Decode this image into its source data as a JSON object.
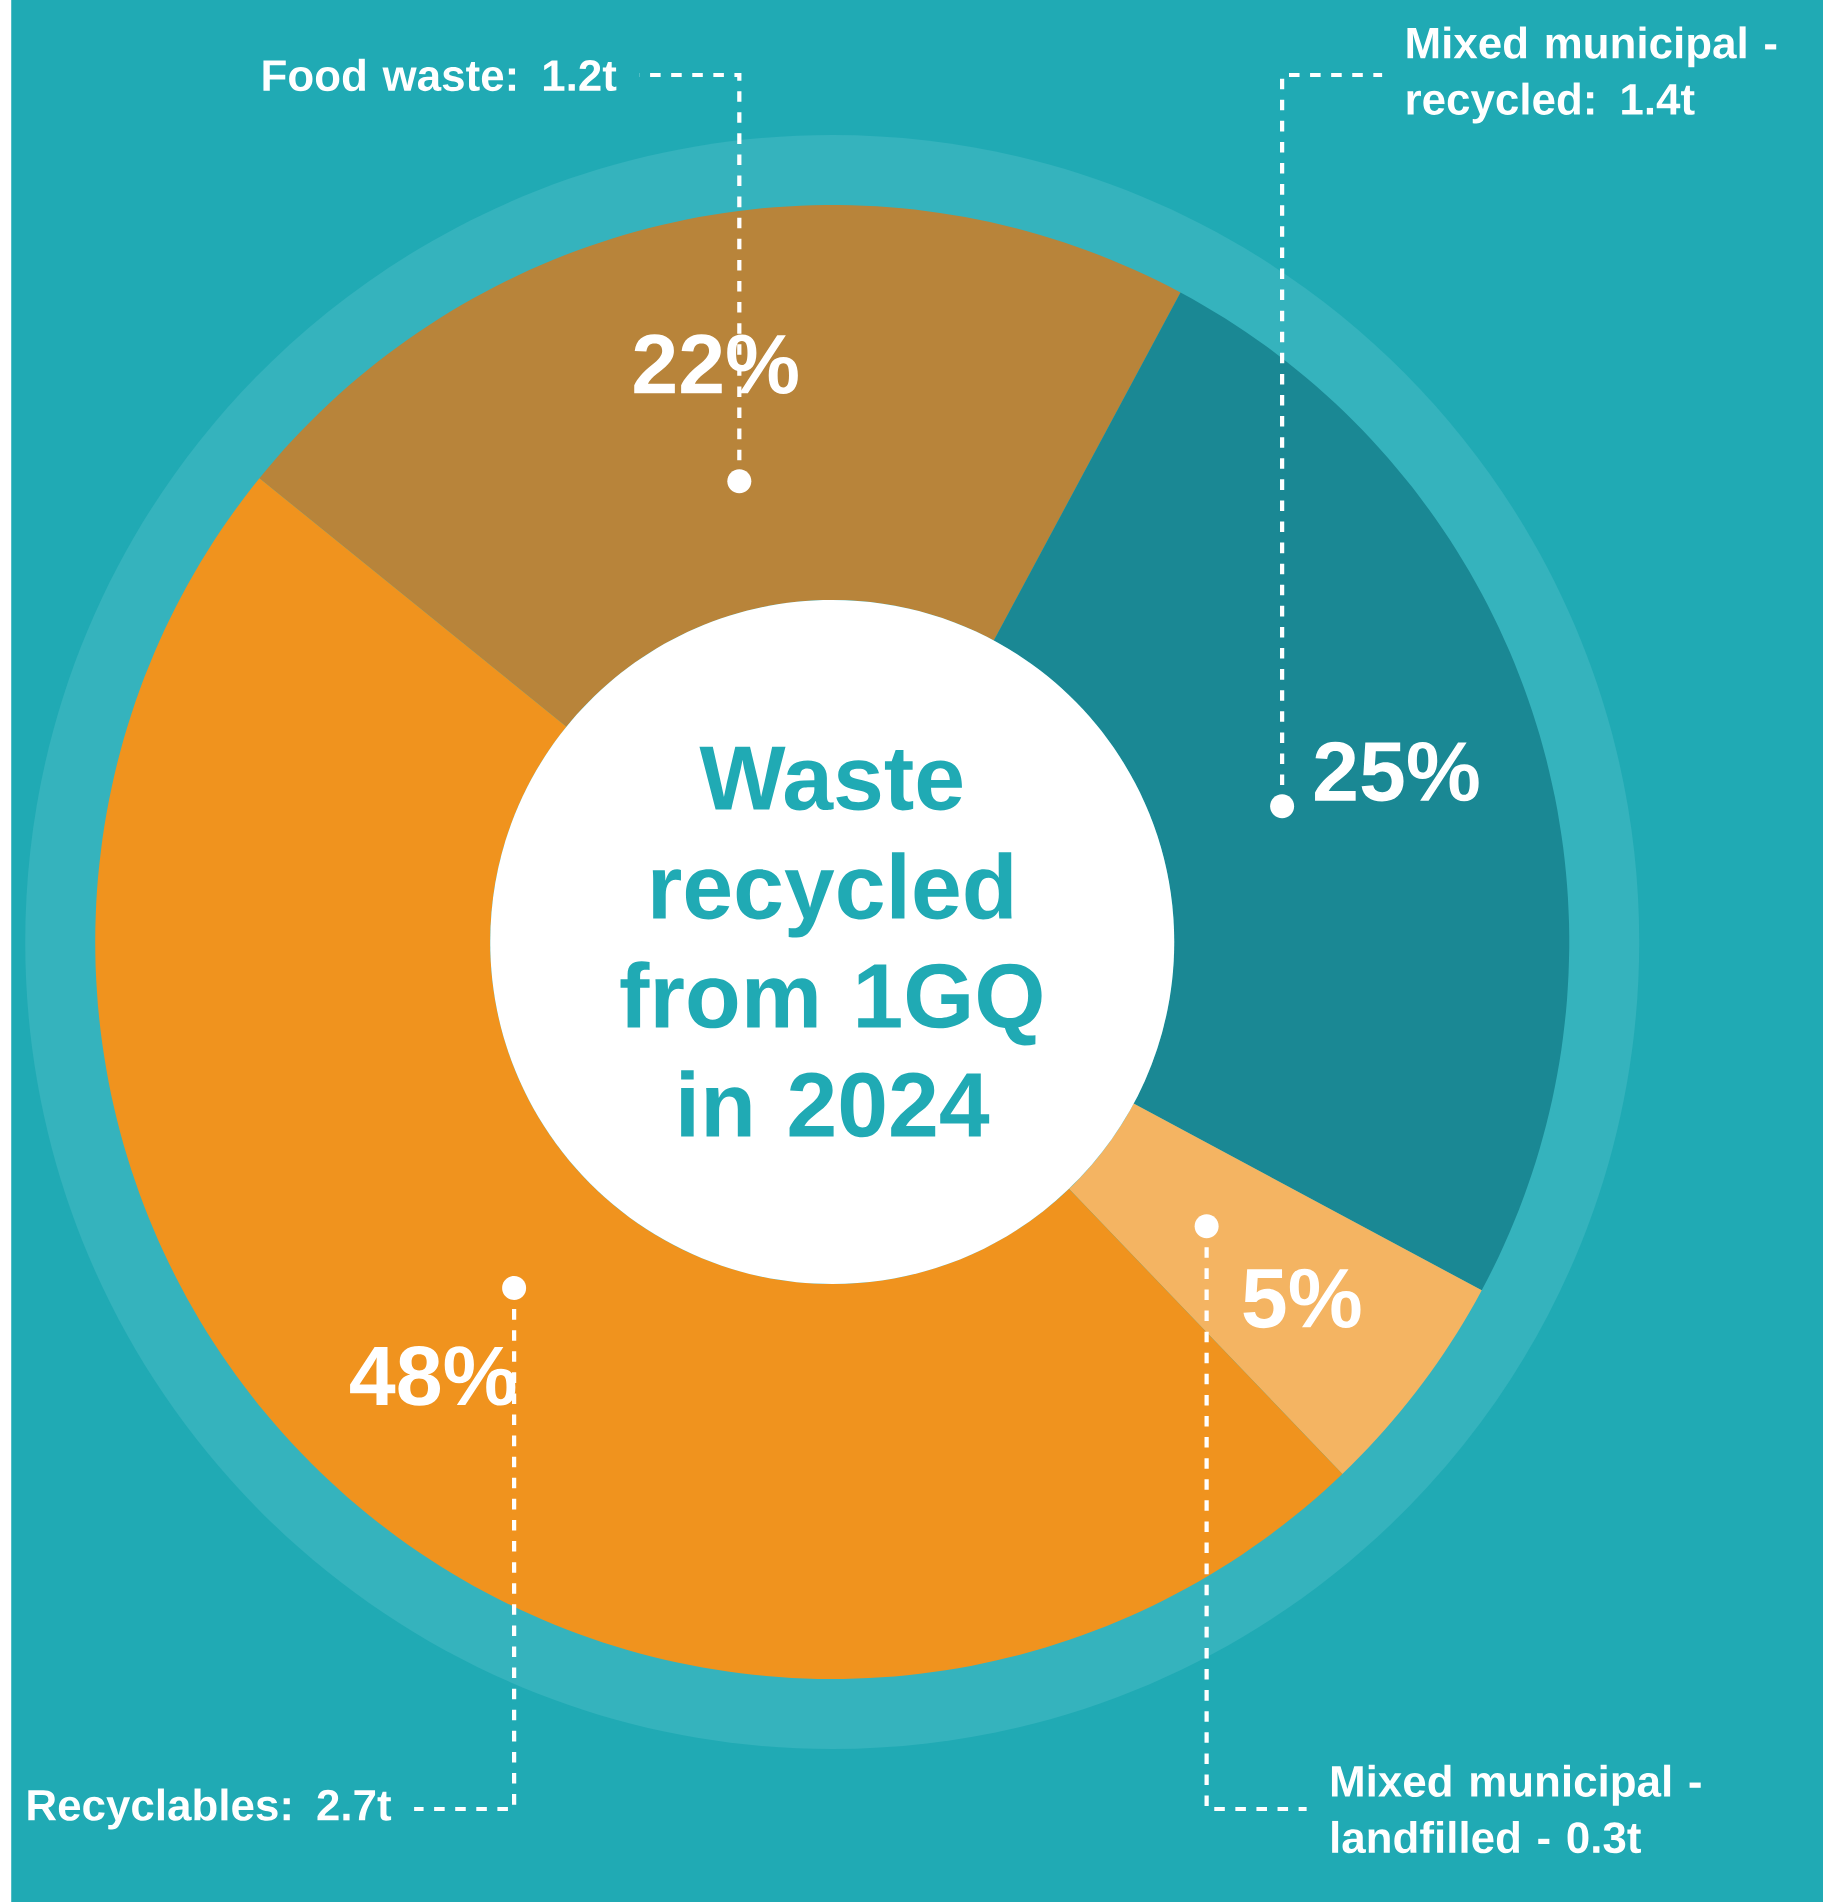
{
  "chart_data": {
    "type": "donut",
    "title": "Waste recycled from 1GQ in 2024",
    "categories": [
      "Food waste: 1.2t",
      "Mixed municipal - recycled: 1.4t",
      "Mixed municipal - landfilled - 0.3t",
      "Recyclables: 2.7t"
    ],
    "values": [
      22,
      25,
      5,
      48
    ],
    "colors": [
      "#b8843a",
      "#1a8894",
      "#f4b462",
      "#f0931e"
    ],
    "value_labels": [
      "22%",
      "25%",
      "5%",
      "48%"
    ]
  }
}
